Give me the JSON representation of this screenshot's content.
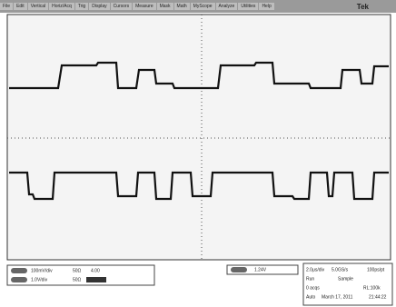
{
  "menu": [
    "File",
    "Edit",
    "Vertical",
    "Horiz/Acq",
    "Trig",
    "Display",
    "Cursors",
    "Measure",
    "Mask",
    "Math",
    "MyScope",
    "Analyze",
    "Utilities",
    "Help"
  ],
  "brand": "Tek",
  "channels": [
    {
      "scale": "100mV/div",
      "coupling": "50Ω",
      "offset": "4.00"
    },
    {
      "scale": "1.0V/div",
      "coupling": "50Ω"
    }
  ],
  "trigger": {
    "level": "1.24V"
  },
  "horizontal": {
    "scale": "2.0μs/div",
    "rate": "5.0GS/s",
    "resolution": "100ps/pt"
  },
  "acquisition": {
    "state": "Run",
    "mode": "Sample",
    "count": "0 acqs",
    "record": "RL:100k"
  },
  "status": {
    "trigger_mode": "Auto",
    "date": "March 17, 2011",
    "time": "21:44:22"
  }
}
